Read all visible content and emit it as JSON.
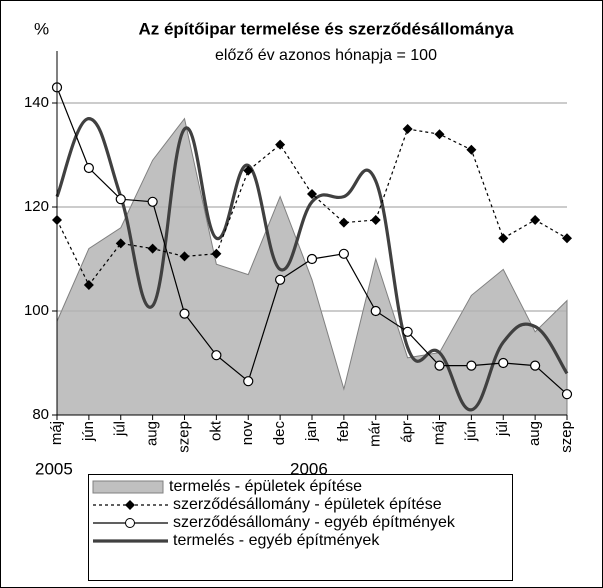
{
  "chart_data": {
    "type": "line",
    "title": "Az építőipar termelése és szerződésállománya",
    "subtitle": "előző év azonos hónapja = 100",
    "y_axis_label": "%",
    "categories": [
      "máj",
      "jún",
      "júl",
      "aug",
      "szep",
      "okt",
      "nov",
      "dec",
      "jan",
      "feb",
      "már",
      "ápr",
      "máj",
      "jún",
      "júl",
      "aug",
      "szep"
    ],
    "year_labels": [
      {
        "index": 0,
        "label": "2005"
      },
      {
        "index": 8,
        "label": "2006"
      }
    ],
    "ylim": [
      80,
      150
    ],
    "yticks": [
      80,
      100,
      120,
      140
    ],
    "grid": true,
    "legend": "bottom",
    "series": [
      {
        "name": "termelés - épületek építése",
        "kind": "area",
        "color": "#c0c0c0",
        "values": [
          98,
          112,
          116,
          129,
          137,
          109,
          107,
          122,
          106,
          85,
          110,
          91,
          92,
          103,
          108,
          96,
          102
        ]
      },
      {
        "name": "szerződésállomány - épületek építése",
        "kind": "line",
        "linestyle": "dotted",
        "marker": "diamond",
        "color": "#000000",
        "values": [
          117.5,
          105,
          113,
          112,
          110.5,
          111,
          127,
          132,
          122.5,
          117,
          117.5,
          135,
          134,
          131,
          114,
          117.5,
          114
        ]
      },
      {
        "name": "szerződésállomány - egyéb építmények",
        "kind": "line",
        "linestyle": "solid",
        "marker": "circle",
        "color": "#000000",
        "values": [
          143,
          127.5,
          121.5,
          121,
          99.5,
          91.5,
          86.5,
          106,
          110,
          111,
          100,
          96,
          89.5,
          89.5,
          90,
          89.5,
          84
        ]
      },
      {
        "name": "termelés - egyéb építmények",
        "kind": "smooth",
        "linestyle": "solid",
        "color": "#404040",
        "values": [
          122,
          137,
          122,
          101,
          135,
          114,
          128,
          108,
          121,
          122,
          125,
          93,
          92,
          81,
          94,
          97,
          88
        ]
      }
    ]
  }
}
